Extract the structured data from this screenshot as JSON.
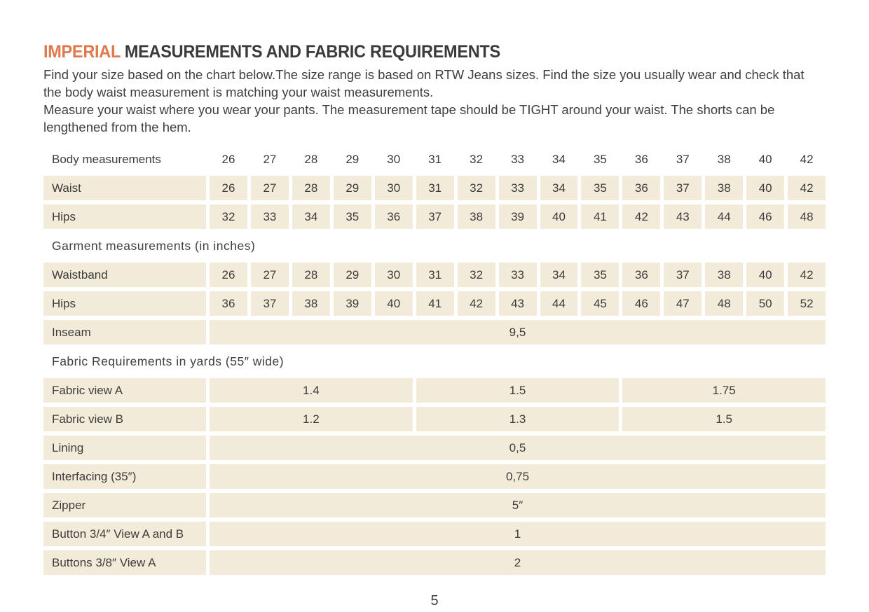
{
  "colors": {
    "accent": "#e0784e",
    "cell_background": "#f3ebd9",
    "text": "#3c3c3c"
  },
  "header": {
    "title_accent": "IMPERIAL",
    "title_rest": " MEASUREMENTS AND FABRIC REQUIREMENTS",
    "intro_1": "Find your size based on the chart below.The size range is based on RTW Jeans sizes. Find the size you usually wear and check that the body waist measurement is matching your waist measurements.",
    "intro_2": "Measure your waist where you wear your pants. The measurement tape should be TIGHT around your waist. The shorts can be lengthened from the hem."
  },
  "chart": {
    "size_header": {
      "label": "Body measurements",
      "sizes": [
        "26",
        "27",
        "28",
        "29",
        "30",
        "31",
        "32",
        "33",
        "34",
        "35",
        "36",
        "37",
        "38",
        "40",
        "42"
      ]
    },
    "body_rows": [
      {
        "label": "Waist",
        "values": [
          "26",
          "27",
          "28",
          "29",
          "30",
          "31",
          "32",
          "33",
          "34",
          "35",
          "36",
          "37",
          "38",
          "40",
          "42"
        ]
      },
      {
        "label": "Hips",
        "values": [
          "32",
          "33",
          "34",
          "35",
          "36",
          "37",
          "38",
          "39",
          "40",
          "41",
          "42",
          "43",
          "44",
          "46",
          "48"
        ]
      }
    ],
    "garment_section_header": "Garment measurements (in inches)",
    "garment_rows": [
      {
        "label": "Waistband",
        "values": [
          "26",
          "27",
          "28",
          "29",
          "30",
          "31",
          "32",
          "33",
          "34",
          "35",
          "36",
          "37",
          "38",
          "40",
          "42"
        ]
      },
      {
        "label": "Hips",
        "values": [
          "36",
          "37",
          "38",
          "39",
          "40",
          "41",
          "42",
          "43",
          "44",
          "45",
          "46",
          "47",
          "48",
          "50",
          "52"
        ]
      }
    ],
    "inseam_row": {
      "label": "Inseam",
      "value": "9,5"
    },
    "fabric_section_header": "Fabric Requirements in yards (55″ wide)",
    "fabric_rows": [
      {
        "label": "Fabric view A",
        "values": [
          "1.4",
          "1.5",
          "1.75"
        ]
      },
      {
        "label": "Fabric view B",
        "values": [
          "1.2",
          "1.3",
          "1.5"
        ]
      }
    ],
    "notions_rows": [
      {
        "label": "Lining",
        "value": "0,5"
      },
      {
        "label": "Interfacing (35″)",
        "value": "0,75"
      },
      {
        "label": "Zipper",
        "value": "5″"
      },
      {
        "label": "Button 3/4″ View A and B",
        "value": "1"
      },
      {
        "label": "Buttons 3/8″  View A",
        "value": "2"
      }
    ]
  },
  "footer": {
    "page_number": "5"
  }
}
